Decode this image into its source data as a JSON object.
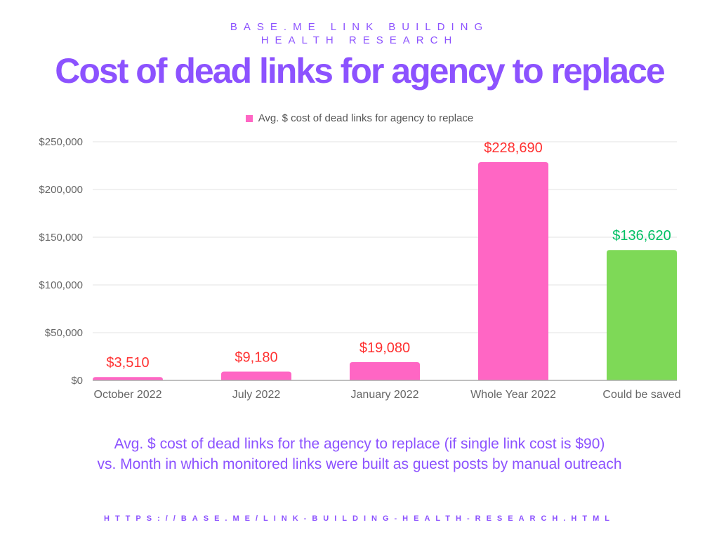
{
  "header": {
    "line1": "BASE.ME LINK BUILDING",
    "line2": "HEALTH RESEARCH"
  },
  "chart_data": {
    "type": "bar",
    "title": "Cost of dead links for agency to replace",
    "legend": [
      "Avg. $ cost of dead links for agency to replace"
    ],
    "legend_position": "top-center",
    "categories": [
      "October 2022",
      "July 2022",
      "January 2022",
      "Whole Year 2022",
      "Could be saved"
    ],
    "values": [
      3510,
      9180,
      19080,
      228690,
      136620
    ],
    "data_labels": [
      "$3,510",
      "$9,180",
      "$19,080",
      "$228,690",
      "$136,620"
    ],
    "bar_colors": [
      "#ff66c4",
      "#ff66c4",
      "#ff66c4",
      "#ff66c4",
      "#7ed957"
    ],
    "label_colors": [
      "#ff3131",
      "#ff3131",
      "#ff3131",
      "#ff3131",
      "#00bf63"
    ],
    "yticks": [
      0,
      50000,
      100000,
      150000,
      200000,
      250000
    ],
    "ytick_labels": [
      "$0",
      "$50,000",
      "$100,000",
      "$150,000",
      "$200,000",
      "$250,000"
    ],
    "ylim": [
      0,
      250000
    ],
    "grid": true,
    "xlabel": "",
    "ylabel": ""
  },
  "caption": {
    "line1": "Avg. $ cost of dead links for the agency to replace (if single link cost is $90)",
    "line2": "vs. Month in which monitored links were built as guest posts by manual outreach"
  },
  "footer": {
    "url": "HTTPS://BASE.ME/LINK-BUILDING-HEALTH-RESEARCH.HTML"
  }
}
